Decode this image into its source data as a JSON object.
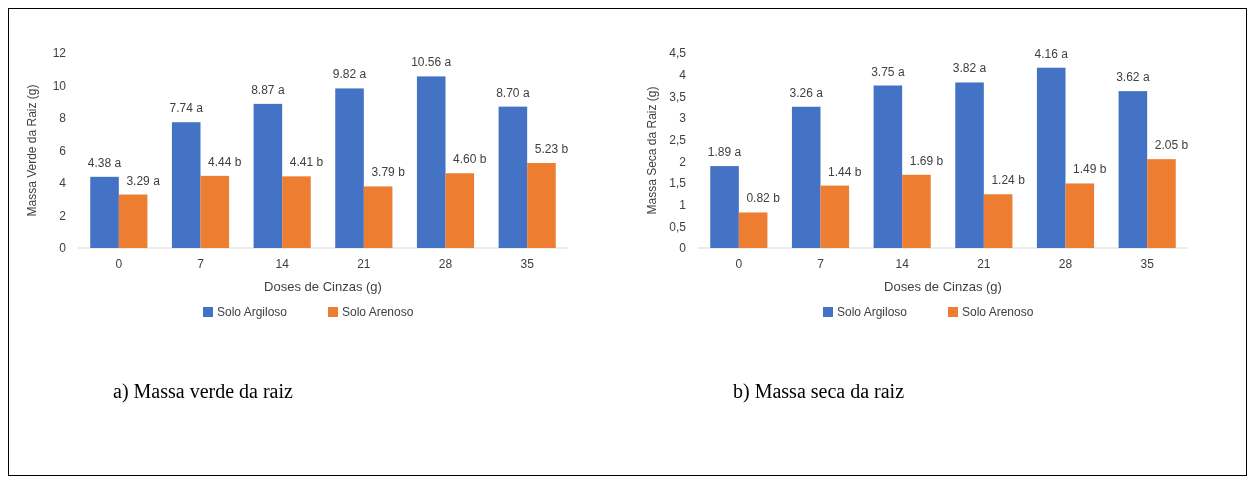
{
  "chart_data": [
    {
      "type": "bar",
      "xlabel": "Doses de Cinzas (g)",
      "ylabel": "Massa Verde da Raiz (g)",
      "categories": [
        "0",
        "7",
        "14",
        "21",
        "28",
        "35"
      ],
      "ylim": [
        0,
        12
      ],
      "yticks": [
        0,
        2,
        4,
        6,
        8,
        10,
        12
      ],
      "grid": false,
      "legend": "bottom",
      "annotations": [
        "a)  Massa verde da raiz"
      ],
      "series": [
        {
          "name": "Solo Argiloso",
          "color": "#4472c4",
          "values": [
            4.38,
            7.74,
            8.87,
            9.82,
            10.56,
            8.7
          ],
          "value_labels": [
            "4.38 a",
            "7.74 a",
            "8.87 a",
            "9.82 a",
            "10.56 a",
            "8.70 a"
          ]
        },
        {
          "name": "Solo Arenoso",
          "color": "#ed7d31",
          "values": [
            3.29,
            4.44,
            4.41,
            3.79,
            4.6,
            5.23
          ],
          "value_labels": [
            "3.29 a",
            "4.44 b",
            "4.41 b",
            "3.79 b",
            "4.60 b",
            "5.23 b"
          ]
        }
      ]
    },
    {
      "type": "bar",
      "xlabel": "Doses de Cinzas (g)",
      "ylabel": "Massa Seca da Raiz (g)",
      "categories": [
        "0",
        "7",
        "14",
        "21",
        "28",
        "35"
      ],
      "ylim": [
        0,
        4.5
      ],
      "yticks": [
        0,
        {
          "value": 0.5,
          "label": "0,5"
        },
        1,
        {
          "value": 1.5,
          "label": "1,5"
        },
        2,
        {
          "value": 2.5,
          "label": "2,5"
        },
        3,
        {
          "value": 3.5,
          "label": "3,5"
        },
        4,
        {
          "value": 4.5,
          "label": "4,5"
        }
      ],
      "grid": false,
      "legend": "bottom",
      "annotations": [
        "b)  Massa seca da raiz"
      ],
      "series": [
        {
          "name": "Solo Argiloso",
          "color": "#4472c4",
          "values": [
            1.89,
            3.26,
            3.75,
            3.82,
            4.16,
            3.62
          ],
          "value_labels": [
            "1.89 a",
            "3.26 a",
            "3.75 a",
            "3.82 a",
            "4.16 a",
            "3.62 a"
          ]
        },
        {
          "name": "Solo Arenoso",
          "color": "#ed7d31",
          "values": [
            0.82,
            1.44,
            1.69,
            1.24,
            1.49,
            2.05
          ],
          "value_labels": [
            "0.82 b",
            "1.44 b",
            "1.69 b",
            "1.24 b",
            "1.49 b",
            "2.05 b"
          ]
        }
      ]
    }
  ]
}
